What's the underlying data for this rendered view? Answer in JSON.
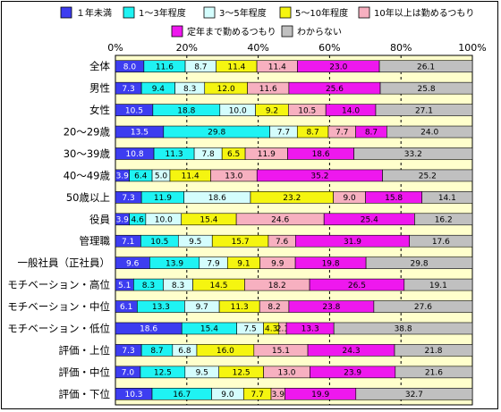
{
  "chart_data": {
    "type": "bar",
    "orientation": "horizontal",
    "stacked_percent": true,
    "xlim": [
      0,
      100
    ],
    "x_ticks": [
      "0%",
      "20%",
      "40%",
      "60%",
      "80%",
      "100%"
    ],
    "grid": true,
    "legend_position": "top",
    "series": [
      {
        "name": "１年未満",
        "color": "#3d3df0"
      },
      {
        "name": "1～3年程度",
        "color": "#1ff3f3"
      },
      {
        "name": "3～5年程度",
        "color": "#d4fdfd"
      },
      {
        "name": "5～10年程度",
        "color": "#f5f510"
      },
      {
        "name": "10年以上は勤めるつもり",
        "color": "#f7b0c0"
      },
      {
        "name": "定年まで勤めるつもり",
        "color": "#ee18ee"
      },
      {
        "name": "わからない",
        "color": "#c0c0c0"
      }
    ],
    "categories": [
      "全体",
      "男性",
      "女性",
      "20～29歳",
      "30～39歳",
      "40～49歳",
      "50歳以上",
      "役員",
      "管理職",
      "一般社員（正社員）",
      "モチベーション・高位",
      "モチベーション・中位",
      "モチベーション・低位",
      "評価・上位",
      "評価・中位",
      "評価・下位"
    ],
    "values": [
      [
        "8.0",
        "11.6",
        "8.7",
        "11.4",
        "11.4",
        "23.0",
        "26.1"
      ],
      [
        "7.3",
        "9.4",
        "8.3",
        "12.0",
        "11.6",
        "25.6",
        "25.8"
      ],
      [
        "10.5",
        "18.8",
        "10.0",
        "9.2",
        "10.5",
        "14.0",
        "27.1"
      ],
      [
        "13.5",
        "29.8",
        "7.7",
        "8.7",
        "7.7",
        "8.7",
        "24.0"
      ],
      [
        "10.8",
        "11.3",
        "7.8",
        "6.5",
        "11.9",
        "18.6",
        "33.2"
      ],
      [
        "3.9",
        "6.4",
        "5.0",
        "11.4",
        "13.0",
        "35.2",
        "25.2"
      ],
      [
        "7.3",
        "11.9",
        "18.6",
        "23.2",
        "9.0",
        "15.8",
        "14.1"
      ],
      [
        "3.9",
        "4.6",
        "10.0",
        "15.4",
        "24.6",
        "25.4",
        "16.2"
      ],
      [
        "7.1",
        "10.5",
        "9.5",
        "15.7",
        "7.6",
        "31.9",
        "17.6"
      ],
      [
        "9.6",
        "13.9",
        "7.9",
        "9.1",
        "9.9",
        "19.8",
        "29.8"
      ],
      [
        "5.1",
        "8.3",
        "8.3",
        "14.5",
        "18.2",
        "26.5",
        "19.1"
      ],
      [
        "6.1",
        "13.3",
        "9.7",
        "11.3",
        "8.2",
        "23.8",
        "27.6"
      ],
      [
        "18.6",
        "15.4",
        "7.5",
        "4.3",
        "2.1",
        "13.3",
        "38.8"
      ],
      [
        "7.3",
        "8.7",
        "6.8",
        "16.0",
        "15.1",
        "24.3",
        "21.8"
      ],
      [
        "7.0",
        "12.5",
        "9.5",
        "12.5",
        "13.0",
        "23.9",
        "21.6"
      ],
      [
        "10.3",
        "16.7",
        "9.0",
        "7.7",
        "3.9",
        "19.9",
        "32.7"
      ]
    ]
  }
}
